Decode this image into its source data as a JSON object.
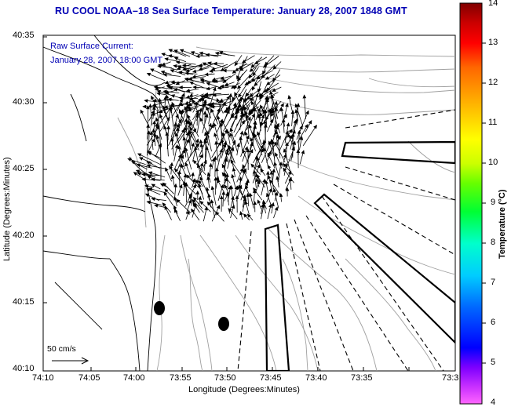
{
  "title": "RU COOL  NOAA–18  Sea Surface Temperature:  January 28, 2007 1848 GMT",
  "annotation_line1": "Raw Surface Current:",
  "annotation_line2": "January 28, 2007 18:00 GMT",
  "scale_label": "50 cm/s",
  "x_axis_label": "Longitude (Degrees:Minutes)",
  "y_axis_label": "Latitude (Degrees:Minutes)",
  "x_ticks": [
    "74:10",
    "74:05",
    "74:00",
    "73:55",
    "73:50",
    "73:45",
    "73:40",
    "73:35",
    "73:3"
  ],
  "y_ticks": [
    "40:35",
    "40:30",
    "40:25",
    "40:20",
    "40:15",
    "40:10"
  ],
  "colorbar": {
    "label": "Temperature (°C)",
    "ticks": [
      "14",
      "13",
      "12",
      "11",
      "10",
      "9",
      "8",
      "7",
      "6",
      "5",
      "4"
    ],
    "colors": [
      "#ff66ff",
      "#7f00ff",
      "#0000ff",
      "#0066ff",
      "#00ccff",
      "#00ffcc",
      "#00ff33",
      "#66ff00",
      "#ccff00",
      "#ffff00",
      "#ffcc00",
      "#ff9900",
      "#ff6600",
      "#ff0000",
      "#cc0000",
      "#800000"
    ]
  }
}
